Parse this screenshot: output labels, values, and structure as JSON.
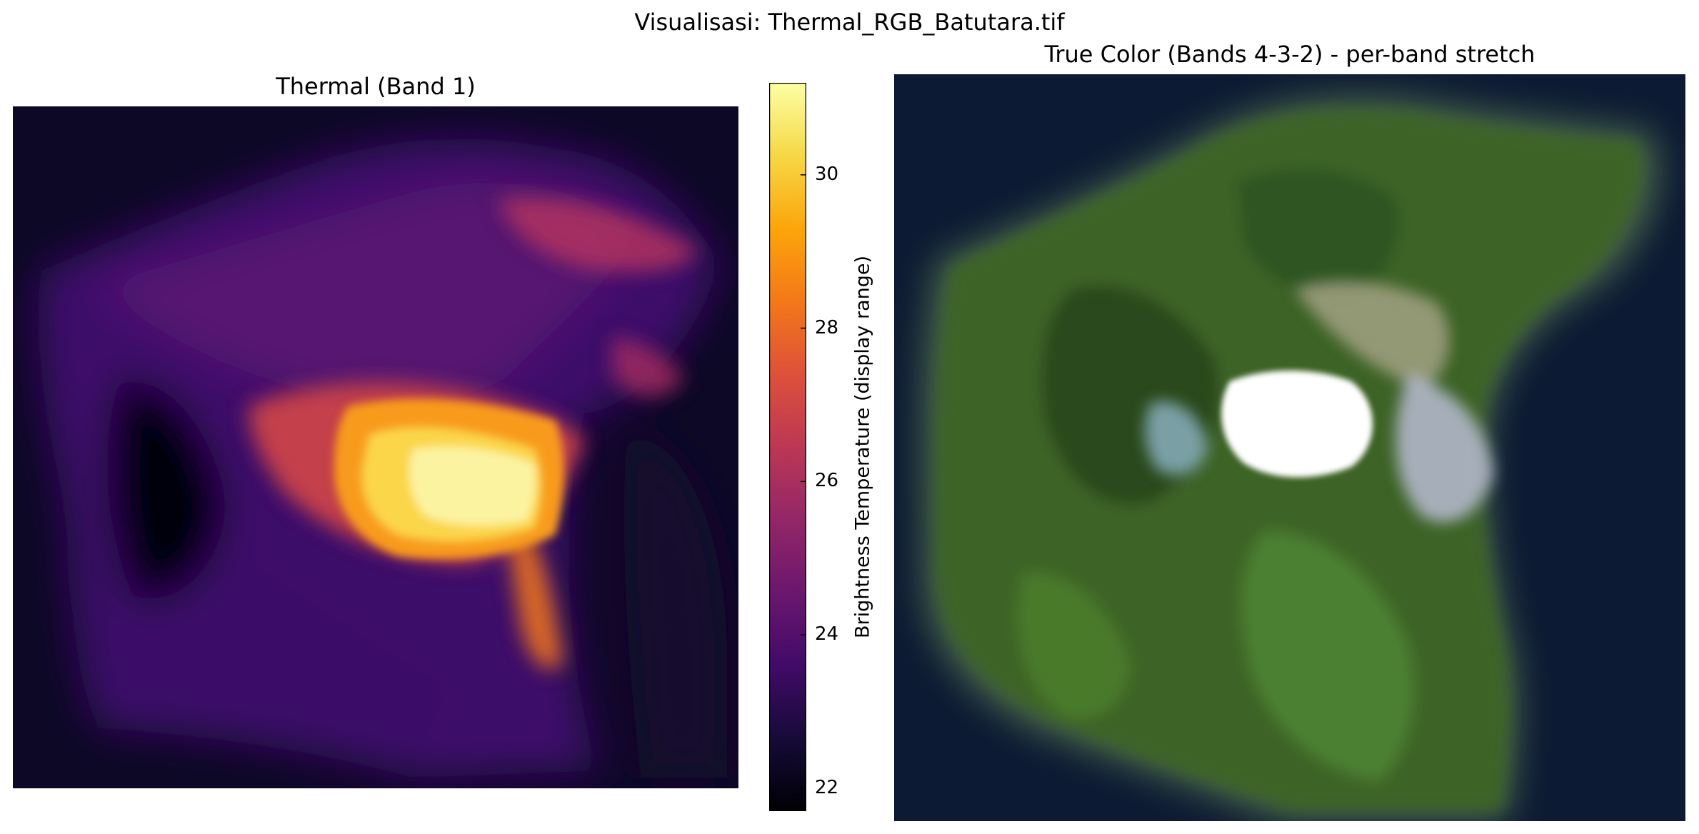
{
  "figure": {
    "suptitle": "Visualisasi: Thermal_RGB_Batutara.tif"
  },
  "chart_data": [
    {
      "type": "heatmap",
      "title": "Thermal (Band 1)",
      "colormap": "inferno",
      "axes_visible": false,
      "description_values": {
        "hotspot_value_approx": 31,
        "background_value_approx": 22
      },
      "colorbar": {
        "label": "Brightness Temperature (display range)",
        "range": [
          21.7,
          31.2
        ],
        "ticks": [
          22,
          24,
          26,
          28,
          30
        ],
        "tick_labels": [
          "22",
          "24",
          "26",
          "28",
          "30"
        ]
      }
    },
    {
      "type": "heatmap",
      "title": "True Color (Bands 4-3-2) - per-band stretch",
      "axes_visible": false,
      "colors": {
        "sea": "#0d1a33",
        "vegetation": "#3f6b24",
        "ash": "#ffffff"
      }
    }
  ]
}
